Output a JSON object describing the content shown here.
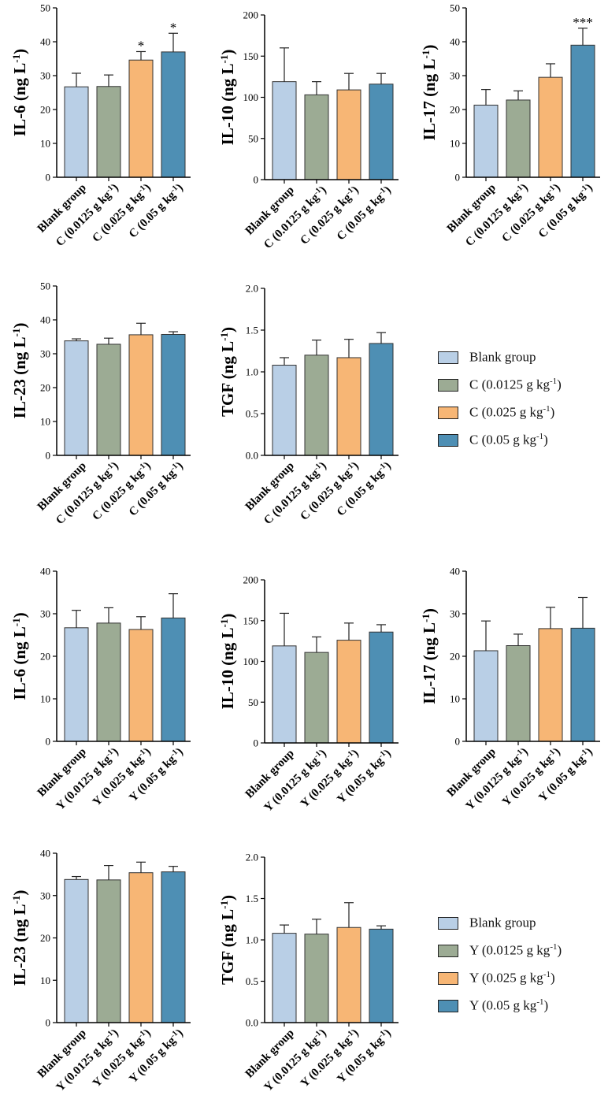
{
  "colors": {
    "blank": "#b9cfe6",
    "low": "#9cab94",
    "mid": "#f7b675",
    "high": "#4e8fb4"
  },
  "legend_top": {
    "items": [
      {
        "label_main": "Blank group",
        "label_sup": "",
        "label_end": "",
        "color_key": "blank"
      },
      {
        "label_main": "C (0.0125 g kg",
        "label_sup": "-1",
        "label_end": ")",
        "color_key": "low"
      },
      {
        "label_main": "C (0.025 g kg",
        "label_sup": "-1",
        "label_end": ")",
        "color_key": "mid"
      },
      {
        "label_main": "C (0.05 g kg",
        "label_sup": "-1",
        "label_end": ")",
        "color_key": "high"
      }
    ]
  },
  "legend_bottom": {
    "items": [
      {
        "label_main": "Blank group",
        "label_sup": "",
        "label_end": "",
        "color_key": "blank"
      },
      {
        "label_main": "Y (0.0125 g kg",
        "label_sup": "-1",
        "label_end": ")",
        "color_key": "low"
      },
      {
        "label_main": "Y (0.025 g kg",
        "label_sup": "-1",
        "label_end": ")",
        "color_key": "mid"
      },
      {
        "label_main": "Y (0.05 g kg",
        "label_sup": "-1",
        "label_end": ")",
        "color_key": "high"
      }
    ]
  },
  "chart_data": [
    {
      "type": "bar",
      "ylabel": "IL-6 (ng L-1)",
      "ylim": [
        0,
        50
      ],
      "yticks": [
        0,
        10,
        20,
        30,
        40,
        50
      ],
      "categories": [
        "Blank group",
        "C (0.0125 g kg-1)",
        "C (0.025 g kg-1)",
        "C (0.05 g kg-1)"
      ],
      "values": [
        26.7,
        26.8,
        34.6,
        37.0
      ],
      "errors": [
        4.0,
        3.4,
        2.5,
        5.5
      ],
      "significance": [
        "",
        "",
        "*",
        "*"
      ]
    },
    {
      "type": "bar",
      "ylabel": "IL-10 (ng L-1)",
      "ylim": [
        0,
        200
      ],
      "yticks": [
        0,
        50,
        100,
        150,
        200
      ],
      "categories": [
        "Blank group",
        "C (0.0125 g kg-1)",
        "C (0.025 g kg-1)",
        "C (0.05 g kg-1)"
      ],
      "values": [
        119,
        103,
        109,
        116
      ],
      "errors": [
        41,
        16,
        20,
        13
      ],
      "significance": [
        "",
        "",
        "",
        ""
      ]
    },
    {
      "type": "bar",
      "ylabel": "IL-17 (ng L-1)",
      "ylim": [
        0,
        50
      ],
      "yticks": [
        0,
        10,
        20,
        30,
        40,
        50
      ],
      "categories": [
        "Blank group",
        "C (0.0125 g kg-1)",
        "C (0.025 g kg-1)",
        "C (0.05 g kg-1)"
      ],
      "values": [
        21.3,
        22.8,
        29.5,
        39.0
      ],
      "errors": [
        4.6,
        2.7,
        4.0,
        5.0
      ],
      "significance": [
        "",
        "",
        "",
        "***"
      ]
    },
    {
      "type": "bar",
      "ylabel": "IL-23 (ng L-1)",
      "ylim": [
        0,
        50
      ],
      "yticks": [
        0,
        10,
        20,
        30,
        40,
        50
      ],
      "categories": [
        "Blank group",
        "C (0.0125 g kg-1)",
        "C (0.025 g kg-1)",
        "C (0.05 g kg-1)"
      ],
      "values": [
        33.8,
        32.8,
        35.6,
        35.7
      ],
      "errors": [
        0.6,
        1.8,
        3.4,
        0.8
      ],
      "significance": [
        "",
        "",
        "",
        ""
      ]
    },
    {
      "type": "bar",
      "ylabel": "TGF (ng L-1)",
      "ylim": [
        0,
        2.0
      ],
      "yticks": [
        0.0,
        0.5,
        1.0,
        1.5,
        2.0
      ],
      "categories": [
        "Blank group",
        "C (0.0125 g kg-1)",
        "C (0.025 g kg-1)",
        "C (0.05 g kg-1)"
      ],
      "values": [
        1.08,
        1.2,
        1.17,
        1.34
      ],
      "errors": [
        0.09,
        0.18,
        0.22,
        0.13
      ],
      "significance": [
        "",
        "",
        "",
        ""
      ]
    },
    {
      "type": "bar",
      "ylabel": "IL-6 (ng L-1)",
      "ylim": [
        0,
        40
      ],
      "yticks": [
        0,
        10,
        20,
        30,
        40
      ],
      "categories": [
        "Blank group",
        "Y (0.0125 g kg-1)",
        "Y (0.025 g kg-1)",
        "Y (0.05 g kg-1)"
      ],
      "values": [
        26.7,
        27.8,
        26.3,
        29.0
      ],
      "errors": [
        4.1,
        3.6,
        3.0,
        5.7
      ],
      "significance": [
        "",
        "",
        "",
        ""
      ]
    },
    {
      "type": "bar",
      "ylabel": "IL-10 (ng L-1)",
      "ylim": [
        0,
        200
      ],
      "yticks": [
        0,
        50,
        100,
        150,
        200
      ],
      "categories": [
        "Blank group",
        "Y (0.0125 g kg-1)",
        "Y (0.025 g kg-1)",
        "Y (0.05 g kg-1)"
      ],
      "values": [
        119,
        111,
        126,
        136
      ],
      "errors": [
        40,
        19,
        21,
        9
      ],
      "significance": [
        "",
        "",
        "",
        ""
      ]
    },
    {
      "type": "bar",
      "ylabel": "IL-17 (ng L-1)",
      "ylim": [
        0,
        40
      ],
      "yticks": [
        0,
        10,
        20,
        30,
        40
      ],
      "categories": [
        "Blank group",
        "Y (0.0125 g kg-1)",
        "Y (0.025 g kg-1)",
        "Y (0.05 g kg-1)"
      ],
      "values": [
        21.3,
        22.5,
        26.5,
        26.6
      ],
      "errors": [
        7.0,
        2.7,
        5.0,
        7.2
      ],
      "significance": [
        "",
        "",
        "",
        ""
      ]
    },
    {
      "type": "bar",
      "ylabel": "IL-23 (ng L-1)",
      "ylim": [
        0,
        40
      ],
      "yticks": [
        0,
        10,
        20,
        30,
        40
      ],
      "categories": [
        "Blank group",
        "Y (0.0125 g kg-1)",
        "Y (0.025 g kg-1)",
        "Y (0.05 g kg-1)"
      ],
      "values": [
        33.8,
        33.7,
        35.4,
        35.6
      ],
      "errors": [
        0.7,
        3.4,
        2.5,
        1.3
      ],
      "significance": [
        "",
        "",
        "",
        ""
      ]
    },
    {
      "type": "bar",
      "ylabel": "TGF (ng L-1)",
      "ylim": [
        0,
        2.0
      ],
      "yticks": [
        0.0,
        0.5,
        1.0,
        1.5,
        2.0
      ],
      "categories": [
        "Blank group",
        "Y (0.0125 g kg-1)",
        "Y (0.025 g kg-1)",
        "Y (0.05 g kg-1)"
      ],
      "values": [
        1.08,
        1.07,
        1.15,
        1.13
      ],
      "errors": [
        0.1,
        0.18,
        0.3,
        0.04
      ],
      "significance": [
        "",
        "",
        "",
        ""
      ]
    }
  ]
}
